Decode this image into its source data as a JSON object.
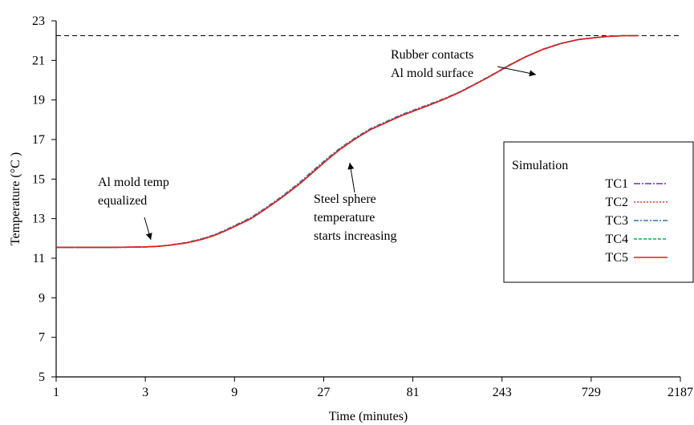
{
  "chart_data": {
    "type": "line",
    "title": "",
    "xlabel": "Time (minutes)",
    "ylabel": "Temperature (°C )",
    "x_scale": "log3",
    "xlim": [
      1,
      2187
    ],
    "ylim": [
      5,
      23
    ],
    "x_ticks": [
      1,
      3,
      9,
      27,
      81,
      243,
      729,
      2187
    ],
    "y_ticks": [
      5,
      7,
      9,
      11,
      13,
      15,
      17,
      19,
      21,
      23
    ],
    "grid": false,
    "reference_line": {
      "y": 22.25,
      "style": "dashed"
    },
    "legend": {
      "title": "Simulation",
      "placement": "right",
      "entries": [
        "TC1",
        "TC2",
        "TC3",
        "TC4",
        "TC5"
      ]
    },
    "series": [
      {
        "name": "TC1",
        "color": "#7030a0",
        "dash": "8,2,2,2",
        "x": [
          1,
          2,
          2.5,
          3,
          3.5,
          4,
          5,
          6,
          7,
          8,
          9,
          11,
          13,
          16,
          20,
          24,
          28,
          33,
          40,
          48,
          58,
          70,
          85,
          100,
          120,
          145,
          175,
          210,
          260,
          320,
          400,
          500,
          620,
          760,
          920,
          1100,
          1300
        ],
        "y": [
          11.55,
          11.55,
          11.56,
          11.57,
          11.6,
          11.65,
          11.78,
          11.95,
          12.15,
          12.38,
          12.6,
          13.0,
          13.45,
          14.05,
          14.75,
          15.4,
          15.95,
          16.5,
          17.05,
          17.5,
          17.85,
          18.2,
          18.5,
          18.75,
          19.05,
          19.4,
          19.8,
          20.2,
          20.7,
          21.15,
          21.55,
          21.85,
          22.05,
          22.15,
          22.22,
          22.25,
          22.25
        ]
      },
      {
        "name": "TC2",
        "color": "#ff3333",
        "dash": "2,2",
        "x": [
          1,
          2,
          2.5,
          3,
          3.5,
          4,
          5,
          6,
          7,
          8,
          9,
          11,
          13,
          16,
          20,
          24,
          28,
          33,
          40,
          48,
          58,
          70,
          85,
          100,
          120,
          145,
          175,
          210,
          260,
          320,
          400,
          500,
          620,
          760,
          920,
          1100,
          1300
        ],
        "y": [
          11.55,
          11.55,
          11.56,
          11.57,
          11.6,
          11.65,
          11.78,
          11.95,
          12.15,
          12.38,
          12.6,
          13.0,
          13.45,
          14.05,
          14.75,
          15.4,
          15.95,
          16.5,
          17.05,
          17.5,
          17.85,
          18.2,
          18.5,
          18.75,
          19.05,
          19.4,
          19.8,
          20.2,
          20.7,
          21.15,
          21.55,
          21.85,
          22.05,
          22.15,
          22.22,
          22.25,
          22.25
        ]
      },
      {
        "name": "TC3",
        "color": "#2e75b6",
        "dash": "6,2,2,2",
        "x": [
          1,
          2,
          2.5,
          3,
          3.5,
          4,
          5,
          6,
          7,
          8,
          9,
          11,
          13,
          16,
          20,
          24,
          28,
          33,
          40,
          48,
          58,
          70,
          85,
          100,
          120,
          145,
          175,
          210,
          260,
          320,
          400,
          500,
          620,
          760,
          920,
          1100,
          1300
        ],
        "y": [
          11.55,
          11.55,
          11.56,
          11.57,
          11.6,
          11.66,
          11.8,
          11.98,
          12.18,
          12.42,
          12.65,
          13.05,
          13.5,
          14.1,
          14.82,
          15.48,
          16.02,
          16.56,
          17.1,
          17.55,
          17.9,
          18.25,
          18.55,
          18.8,
          19.08,
          19.42,
          19.82,
          20.22,
          20.72,
          21.16,
          21.56,
          21.86,
          22.05,
          22.15,
          22.22,
          22.25,
          22.25
        ]
      },
      {
        "name": "TC4",
        "color": "#00b050",
        "dash": "4,2",
        "x": [
          1,
          2,
          2.5,
          3,
          3.5,
          4,
          5,
          6,
          7,
          8,
          9,
          11,
          13,
          16,
          20,
          24,
          28,
          33,
          40,
          48,
          58,
          70,
          85,
          100,
          120,
          145,
          175,
          210,
          260,
          320,
          400,
          500,
          620,
          760,
          920,
          1100,
          1300
        ],
        "y": [
          11.55,
          11.55,
          11.56,
          11.57,
          11.6,
          11.65,
          11.78,
          11.95,
          12.15,
          12.38,
          12.6,
          13.0,
          13.45,
          14.05,
          14.75,
          15.4,
          15.95,
          16.5,
          17.05,
          17.5,
          17.85,
          18.2,
          18.5,
          18.75,
          19.05,
          19.4,
          19.8,
          20.2,
          20.7,
          21.15,
          21.55,
          21.85,
          22.05,
          22.15,
          22.22,
          22.25,
          22.25
        ]
      },
      {
        "name": "TC5",
        "color": "#e81c1c",
        "dash": "",
        "x": [
          1,
          2,
          2.5,
          3,
          3.5,
          4,
          5,
          6,
          7,
          8,
          9,
          11,
          13,
          16,
          20,
          24,
          28,
          33,
          40,
          48,
          58,
          70,
          85,
          100,
          120,
          145,
          175,
          210,
          260,
          320,
          400,
          500,
          620,
          760,
          920,
          1100,
          1300
        ],
        "y": [
          11.55,
          11.55,
          11.56,
          11.57,
          11.6,
          11.65,
          11.78,
          11.95,
          12.15,
          12.38,
          12.6,
          13.0,
          13.45,
          14.05,
          14.75,
          15.4,
          15.95,
          16.5,
          17.05,
          17.5,
          17.85,
          18.2,
          18.5,
          18.75,
          19.05,
          19.4,
          19.8,
          20.2,
          20.7,
          21.15,
          21.55,
          21.85,
          22.05,
          22.15,
          22.22,
          22.25,
          22.25
        ]
      }
    ],
    "annotations": [
      {
        "lines": [
          "Al mold temp",
          "equalized"
        ],
        "x": 3.5,
        "y": 11.65
      },
      {
        "lines": [
          "Steel sphere",
          "temperature",
          "starts increasing"
        ],
        "x": 33,
        "y": 16.3
      },
      {
        "lines": [
          "Rubber contacts",
          "Al mold surface"
        ],
        "x": 310,
        "y": 20.4
      }
    ]
  }
}
